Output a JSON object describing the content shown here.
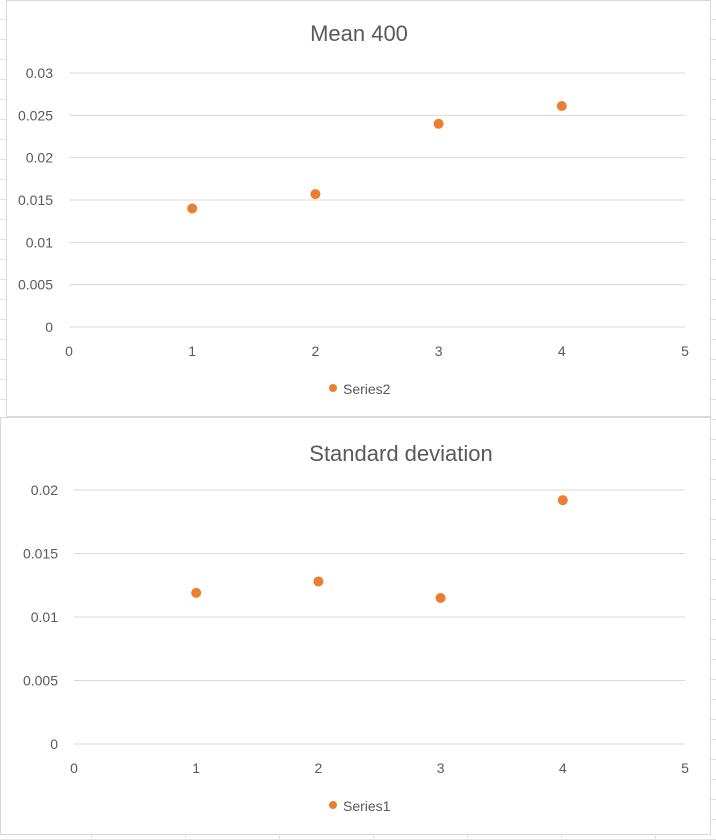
{
  "colors": {
    "marker": "#ed7d31",
    "text": "#595959",
    "grid": "#d9d9d9"
  },
  "chart_data": [
    {
      "type": "scatter",
      "title": "Mean 400",
      "xlim": [
        0,
        5
      ],
      "ylim": [
        0,
        0.03
      ],
      "x_ticks": [
        "0",
        "1",
        "2",
        "3",
        "4",
        "5"
      ],
      "y_ticks": [
        "0",
        "0.005",
        "0.01",
        "0.015",
        "0.02",
        "0.025",
        "0.03"
      ],
      "grid": "horizontal",
      "legend_position": "bottom",
      "series": [
        {
          "name": "Series2",
          "points": [
            {
              "x": 1,
              "y": 0.014
            },
            {
              "x": 2,
              "y": 0.0157
            },
            {
              "x": 3,
              "y": 0.024
            },
            {
              "x": 4,
              "y": 0.0261
            }
          ]
        }
      ]
    },
    {
      "type": "scatter",
      "title": "Standard deviation",
      "xlim": [
        0,
        5
      ],
      "ylim": [
        0,
        0.02
      ],
      "x_ticks": [
        "0",
        "1",
        "2",
        "3",
        "4",
        "5"
      ],
      "y_ticks": [
        "0",
        "0.005",
        "0.01",
        "0.015",
        "0.02"
      ],
      "grid": "horizontal",
      "legend_position": "bottom",
      "series": [
        {
          "name": "Series1",
          "points": [
            {
              "x": 1,
              "y": 0.0119
            },
            {
              "x": 2,
              "y": 0.0128
            },
            {
              "x": 3,
              "y": 0.0115
            },
            {
              "x": 4,
              "y": 0.0192
            }
          ]
        }
      ]
    }
  ]
}
